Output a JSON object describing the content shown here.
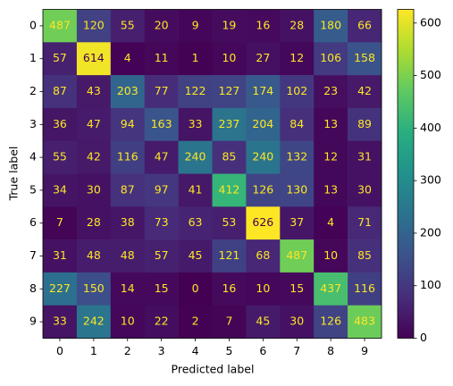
{
  "chart_data": {
    "type": "heatmap",
    "xlabel": "Predicted label",
    "ylabel": "True label",
    "x_categories": [
      "0",
      "1",
      "2",
      "3",
      "4",
      "5",
      "6",
      "7",
      "8",
      "9"
    ],
    "y_categories": [
      "0",
      "1",
      "2",
      "3",
      "4",
      "5",
      "6",
      "7",
      "8",
      "9"
    ],
    "z": [
      [
        487,
        120,
        55,
        20,
        9,
        19,
        16,
        28,
        180,
        66
      ],
      [
        57,
        614,
        4,
        11,
        1,
        10,
        27,
        12,
        106,
        158
      ],
      [
        87,
        43,
        203,
        77,
        122,
        127,
        174,
        102,
        23,
        42
      ],
      [
        36,
        47,
        94,
        163,
        33,
        237,
        204,
        84,
        13,
        89
      ],
      [
        55,
        42,
        116,
        47,
        240,
        85,
        240,
        132,
        12,
        31
      ],
      [
        34,
        30,
        87,
        97,
        41,
        412,
        126,
        130,
        13,
        30
      ],
      [
        7,
        28,
        38,
        73,
        63,
        53,
        626,
        37,
        4,
        71
      ],
      [
        31,
        48,
        48,
        57,
        45,
        121,
        68,
        487,
        10,
        85
      ],
      [
        227,
        150,
        14,
        15,
        0,
        16,
        10,
        15,
        437,
        116
      ],
      [
        33,
        242,
        10,
        22,
        2,
        7,
        45,
        30,
        126,
        483
      ]
    ],
    "zlim": [
      0,
      626
    ],
    "zticks": [
      0,
      100,
      200,
      300,
      400,
      500,
      600
    ],
    "colormap": "viridis"
  }
}
